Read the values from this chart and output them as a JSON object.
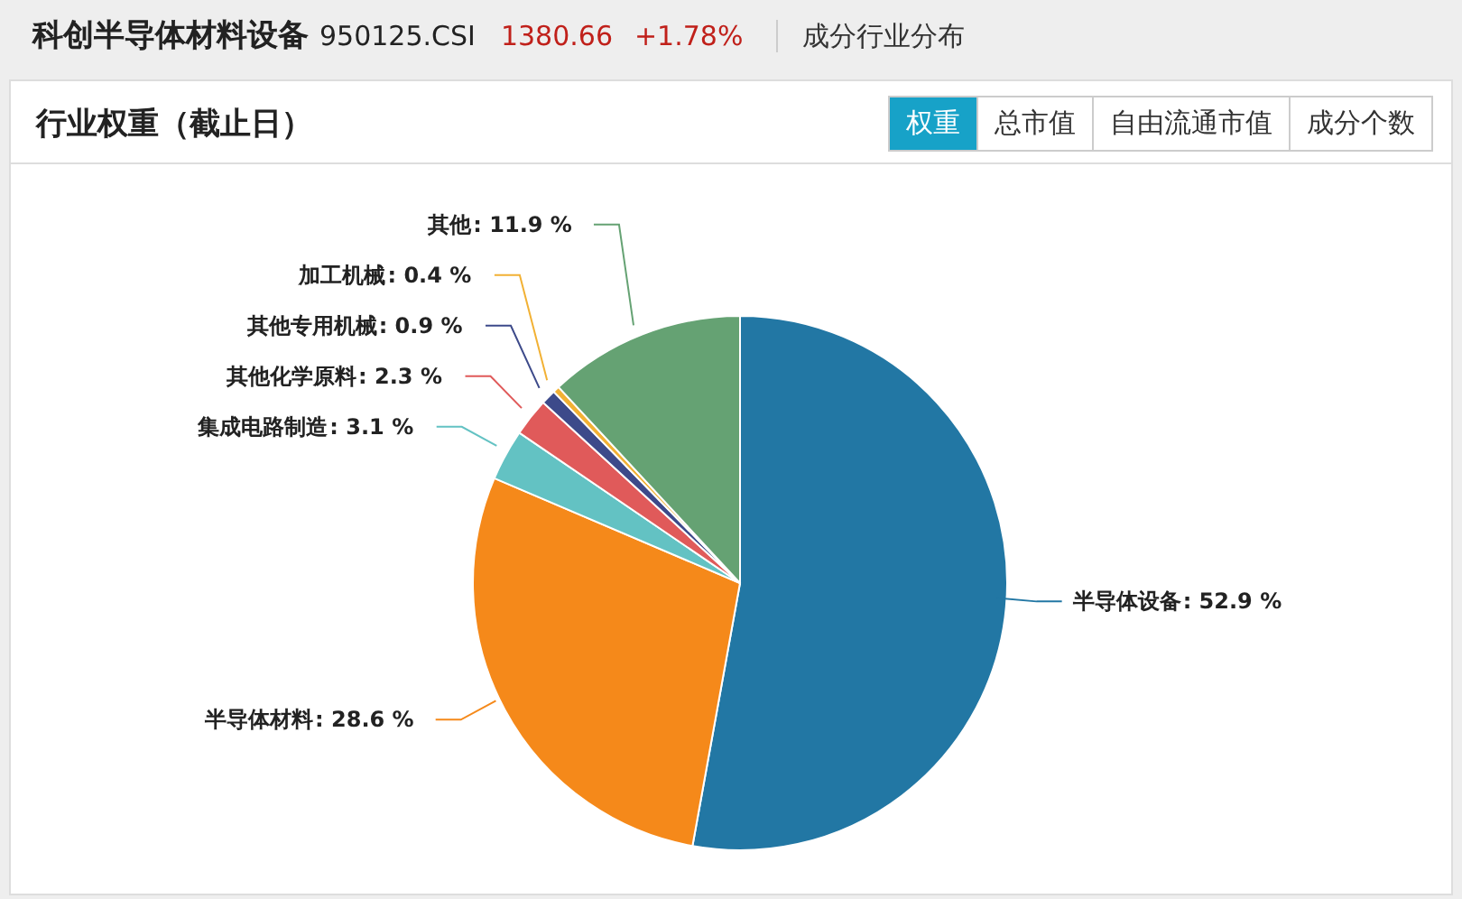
{
  "chart_data": {
    "type": "pie",
    "title": "科创半导体材料设备",
    "subtitle": "行业权重（截止日）",
    "annotations": [
      "950125.CSI",
      "1380.66",
      "+1.78%",
      "成分行业分布",
      "权重",
      "总市值",
      "自由流通市值",
      "成分个数"
    ],
    "categories": [
      "半导体设备",
      "半导体材料",
      "集成电路制造",
      "其他化学原料",
      "其他专用机械",
      "加工机械",
      "其他"
    ],
    "values": [
      52.9,
      28.6,
      3.1,
      2.3,
      0.9,
      0.4,
      11.9
    ],
    "colors": [
      "#2277a4",
      "#f5891a",
      "#63c2c3",
      "#e05a5a",
      "#3d4a8a",
      "#f2b134",
      "#65a273"
    ],
    "value_labels": [
      ": 52.9 %",
      ": 28.6 %",
      ": 3.1 %",
      ": 2.3 %",
      ": 0.9 %",
      ": 0.4 %",
      ": 11.9 %"
    ],
    "legend": false
  }
}
